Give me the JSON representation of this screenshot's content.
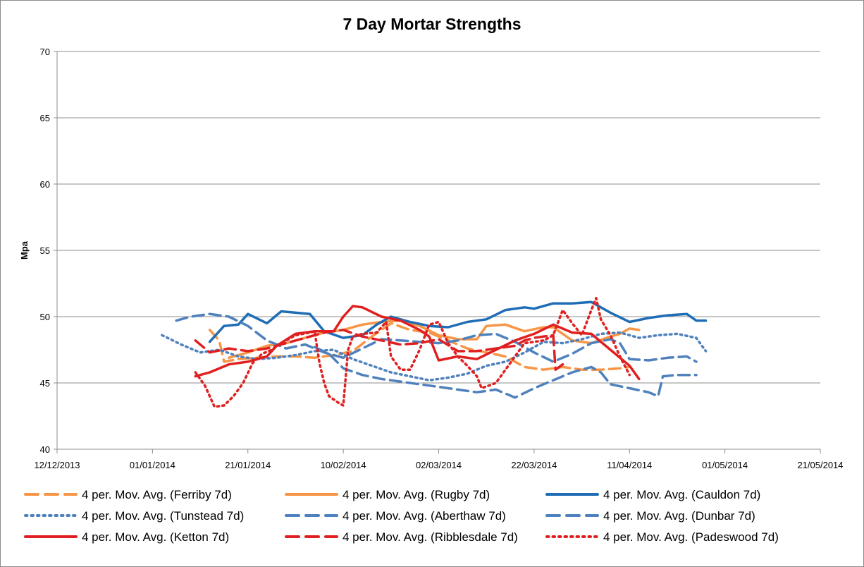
{
  "chart_data": {
    "type": "line",
    "title": "7 Day Mortar Strengths",
    "ylabel": "Mpa",
    "xlabel": "",
    "ylim": [
      40,
      70
    ],
    "yticks": [
      40,
      45,
      50,
      55,
      60,
      65,
      70
    ],
    "xlim": [
      0,
      160
    ],
    "xticks": [
      {
        "day": 0,
        "label": "12/12/2013"
      },
      {
        "day": 20,
        "label": "01/01/2014"
      },
      {
        "day": 40,
        "label": "21/01/2014"
      },
      {
        "day": 60,
        "label": "10/02/2014"
      },
      {
        "day": 80,
        "label": "02/03/2014"
      },
      {
        "day": 100,
        "label": "22/03/2014"
      },
      {
        "day": 120,
        "label": "11/04/2014"
      },
      {
        "day": 140,
        "label": "01/05/2014"
      },
      {
        "day": 160,
        "label": "21/05/2014"
      }
    ],
    "legend_position": "bottom",
    "series": [
      {
        "name": "4 per. Mov. Avg. (Ferriby 7d)",
        "color": "#f79646",
        "dash": "dash",
        "points": [
          [
            32,
            49.0
          ],
          [
            34,
            48.2
          ],
          [
            35,
            46.6
          ],
          [
            38,
            46.8
          ],
          [
            42,
            46.9
          ],
          [
            46,
            47.0
          ],
          [
            50,
            47.0
          ],
          [
            54,
            46.9
          ],
          [
            58,
            47.1
          ],
          [
            62,
            47.4
          ],
          [
            66,
            48.5
          ],
          [
            70,
            49.5
          ],
          [
            74,
            49.0
          ],
          [
            78,
            48.8
          ],
          [
            82,
            48.2
          ],
          [
            86,
            47.6
          ],
          [
            90,
            47.3
          ],
          [
            94,
            47.0
          ],
          [
            98,
            46.2
          ],
          [
            102,
            46.0
          ],
          [
            106,
            46.2
          ],
          [
            110,
            46.0
          ],
          [
            114,
            46.0
          ],
          [
            118,
            46.1
          ],
          [
            120,
            46.2
          ]
        ]
      },
      {
        "name": "4 per. Mov. Avg. (Rugby 7d)",
        "color": "#f79646",
        "dash": "solid",
        "points": [
          [
            36,
            46.9
          ],
          [
            40,
            47.3
          ],
          [
            44,
            47.8
          ],
          [
            48,
            48.0
          ],
          [
            52,
            48.4
          ],
          [
            56,
            48.8
          ],
          [
            60,
            49.0
          ],
          [
            64,
            49.4
          ],
          [
            68,
            49.6
          ],
          [
            72,
            49.7
          ],
          [
            76,
            49.3
          ],
          [
            80,
            48.6
          ],
          [
            84,
            48.3
          ],
          [
            88,
            48.3
          ],
          [
            90,
            49.3
          ],
          [
            94,
            49.4
          ],
          [
            98,
            48.9
          ],
          [
            102,
            49.2
          ],
          [
            104,
            49.2
          ],
          [
            108,
            48.2
          ],
          [
            112,
            48.0
          ],
          [
            116,
            48.5
          ],
          [
            118,
            48.7
          ],
          [
            120,
            49.1
          ],
          [
            122,
            49.0
          ]
        ]
      },
      {
        "name": "4 per. Mov. Avg. (Cauldon 7d)",
        "color": "#1f6db5",
        "dash": "solid",
        "points": [
          [
            32,
            48.1
          ],
          [
            35,
            49.3
          ],
          [
            38,
            49.4
          ],
          [
            40,
            50.2
          ],
          [
            44,
            49.5
          ],
          [
            47,
            50.4
          ],
          [
            50,
            50.3
          ],
          [
            53,
            50.2
          ],
          [
            56,
            48.9
          ],
          [
            60,
            48.4
          ],
          [
            64,
            48.6
          ],
          [
            67,
            49.4
          ],
          [
            70,
            50.0
          ],
          [
            74,
            49.6
          ],
          [
            78,
            49.3
          ],
          [
            82,
            49.2
          ],
          [
            86,
            49.6
          ],
          [
            90,
            49.8
          ],
          [
            94,
            50.5
          ],
          [
            98,
            50.7
          ],
          [
            100,
            50.6
          ],
          [
            104,
            51.0
          ],
          [
            108,
            51.0
          ],
          [
            112,
            51.1
          ],
          [
            116,
            50.3
          ],
          [
            120,
            49.6
          ],
          [
            124,
            49.9
          ],
          [
            128,
            50.1
          ],
          [
            132,
            50.2
          ],
          [
            134,
            49.7
          ],
          [
            136,
            49.7
          ]
        ]
      },
      {
        "name": "4 per. Mov. Avg. (Tunstead 7d)",
        "color": "#4f81bd",
        "dash": "dot",
        "points": [
          [
            22,
            48.6
          ],
          [
            26,
            47.9
          ],
          [
            30,
            47.3
          ],
          [
            34,
            47.5
          ],
          [
            38,
            47.0
          ],
          [
            42,
            46.8
          ],
          [
            46,
            46.9
          ],
          [
            50,
            47.1
          ],
          [
            54,
            47.4
          ],
          [
            58,
            47.5
          ],
          [
            62,
            46.8
          ],
          [
            66,
            46.3
          ],
          [
            70,
            45.8
          ],
          [
            74,
            45.5
          ],
          [
            78,
            45.2
          ],
          [
            82,
            45.4
          ],
          [
            86,
            45.7
          ],
          [
            90,
            46.3
          ],
          [
            94,
            46.6
          ],
          [
            98,
            47.3
          ],
          [
            102,
            48.1
          ],
          [
            106,
            48.0
          ],
          [
            110,
            48.3
          ],
          [
            114,
            48.7
          ],
          [
            118,
            48.8
          ],
          [
            122,
            48.4
          ],
          [
            126,
            48.6
          ],
          [
            130,
            48.7
          ],
          [
            134,
            48.4
          ],
          [
            136,
            47.4
          ]
        ]
      },
      {
        "name": "4 per. Mov. Avg. (Aberthaw 7d)",
        "color": "#4f81bd",
        "dash": "dash",
        "points": [
          [
            54,
            47.7
          ],
          [
            57,
            47.2
          ],
          [
            60,
            46.1
          ],
          [
            64,
            45.6
          ],
          [
            68,
            45.3
          ],
          [
            72,
            45.1
          ],
          [
            76,
            44.9
          ],
          [
            80,
            44.7
          ],
          [
            84,
            44.5
          ],
          [
            88,
            44.3
          ],
          [
            92,
            44.5
          ],
          [
            96,
            43.9
          ],
          [
            100,
            44.6
          ],
          [
            104,
            45.2
          ],
          [
            108,
            45.8
          ],
          [
            112,
            46.2
          ],
          [
            114,
            45.8
          ],
          [
            116,
            44.9
          ],
          [
            120,
            44.6
          ],
          [
            124,
            44.3
          ],
          [
            126,
            44.0
          ],
          [
            127,
            45.5
          ],
          [
            130,
            45.6
          ],
          [
            134,
            45.6
          ]
        ]
      },
      {
        "name": "4 per. Mov. Avg. (Dunbar 7d)",
        "color": "#4f81bd",
        "dash": "dash",
        "points": [
          [
            25,
            49.7
          ],
          [
            28,
            50.0
          ],
          [
            32,
            50.2
          ],
          [
            36,
            50.0
          ],
          [
            40,
            49.3
          ],
          [
            44,
            48.2
          ],
          [
            48,
            47.6
          ],
          [
            52,
            47.9
          ],
          [
            56,
            47.3
          ],
          [
            60,
            46.9
          ],
          [
            64,
            47.6
          ],
          [
            68,
            48.3
          ],
          [
            72,
            48.2
          ],
          [
            76,
            48.1
          ],
          [
            80,
            48.0
          ],
          [
            84,
            48.2
          ],
          [
            88,
            48.6
          ],
          [
            92,
            48.7
          ],
          [
            96,
            48.1
          ],
          [
            100,
            47.3
          ],
          [
            104,
            46.6
          ],
          [
            108,
            47.2
          ],
          [
            112,
            48.0
          ],
          [
            116,
            48.3
          ],
          [
            118,
            48.0
          ],
          [
            120,
            46.8
          ],
          [
            124,
            46.7
          ],
          [
            128,
            46.9
          ],
          [
            132,
            47.0
          ],
          [
            134,
            46.6
          ]
        ]
      },
      {
        "name": "4 per. Mov. Avg. (Ketton 7d)",
        "color": "#e02020",
        "dash": "solid",
        "points": [
          [
            29,
            45.5
          ],
          [
            32,
            45.8
          ],
          [
            36,
            46.4
          ],
          [
            40,
            46.6
          ],
          [
            44,
            47.0
          ],
          [
            46,
            47.8
          ],
          [
            50,
            48.7
          ],
          [
            54,
            48.9
          ],
          [
            58,
            48.9
          ],
          [
            60,
            50.0
          ],
          [
            62,
            50.8
          ],
          [
            64,
            50.7
          ],
          [
            68,
            50.0
          ],
          [
            72,
            49.7
          ],
          [
            76,
            49.0
          ],
          [
            78,
            48.5
          ],
          [
            80,
            46.7
          ],
          [
            84,
            47.0
          ],
          [
            88,
            46.8
          ],
          [
            92,
            47.5
          ],
          [
            96,
            48.2
          ],
          [
            100,
            48.7
          ],
          [
            104,
            49.4
          ],
          [
            108,
            48.8
          ],
          [
            112,
            48.7
          ],
          [
            116,
            47.5
          ],
          [
            120,
            46.3
          ],
          [
            122,
            45.3
          ]
        ]
      },
      {
        "name": "4 per. Mov. Avg. (Ribblesdale 7d)",
        "color": "#e02020",
        "dash": "dash",
        "points": [
          [
            29,
            48.2
          ],
          [
            32,
            47.3
          ],
          [
            36,
            47.6
          ],
          [
            40,
            47.4
          ],
          [
            44,
            47.6
          ],
          [
            48,
            48.0
          ],
          [
            52,
            48.4
          ],
          [
            56,
            48.8
          ],
          [
            60,
            49.0
          ],
          [
            64,
            48.5
          ],
          [
            68,
            48.2
          ],
          [
            72,
            47.9
          ],
          [
            76,
            48.0
          ],
          [
            80,
            48.3
          ],
          [
            84,
            47.4
          ],
          [
            88,
            47.4
          ],
          [
            92,
            47.6
          ],
          [
            96,
            47.8
          ],
          [
            98,
            48.2
          ],
          [
            100,
            48.4
          ],
          [
            104,
            48.6
          ],
          [
            104.5,
            46.0
          ],
          [
            106,
            46.4
          ]
        ]
      },
      {
        "name": "4 per. Mov. Avg. (Padeswood 7d)",
        "color": "#e02020",
        "dash": "dot",
        "points": [
          [
            29,
            45.8
          ],
          [
            31,
            44.8
          ],
          [
            33,
            43.2
          ],
          [
            35,
            43.3
          ],
          [
            37,
            44.0
          ],
          [
            39,
            45.0
          ],
          [
            41,
            46.5
          ],
          [
            43,
            47.2
          ],
          [
            45,
            47.5
          ],
          [
            47,
            48.0
          ],
          [
            50,
            48.6
          ],
          [
            53,
            48.8
          ],
          [
            54,
            48.9
          ],
          [
            55,
            46.5
          ],
          [
            56,
            45.0
          ],
          [
            57,
            44.0
          ],
          [
            59,
            43.5
          ],
          [
            60,
            43.3
          ],
          [
            61,
            47.5
          ],
          [
            62,
            48.5
          ],
          [
            64,
            48.7
          ],
          [
            67,
            48.8
          ],
          [
            69,
            49.6
          ],
          [
            70,
            47.0
          ],
          [
            72,
            46.0
          ],
          [
            74,
            46.0
          ],
          [
            76,
            47.5
          ],
          [
            78,
            49.4
          ],
          [
            80,
            49.6
          ],
          [
            82,
            48.0
          ],
          [
            84,
            47.0
          ],
          [
            86,
            46.3
          ],
          [
            88,
            45.5
          ],
          [
            89,
            44.6
          ],
          [
            92,
            45.0
          ],
          [
            94,
            46.0
          ],
          [
            98,
            48.0
          ],
          [
            102,
            48.2
          ],
          [
            104,
            48.6
          ],
          [
            106,
            50.5
          ],
          [
            108,
            49.5
          ],
          [
            110,
            48.6
          ],
          [
            112,
            50.5
          ],
          [
            113,
            51.4
          ],
          [
            114,
            49.8
          ],
          [
            116,
            48.6
          ],
          [
            118,
            47.0
          ],
          [
            120,
            45.6
          ]
        ]
      }
    ]
  }
}
